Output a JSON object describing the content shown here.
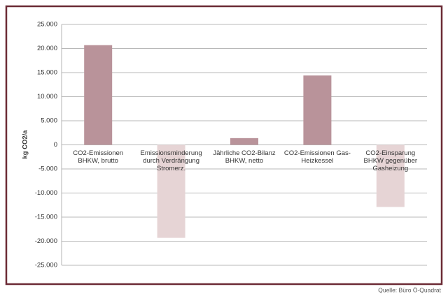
{
  "chart_data": {
    "type": "bar",
    "y_label": "kg CO2/a",
    "source": "Quelle: Büro Ö-Quadrat",
    "categories": [
      "CO2-Emissionen BHKW, brutto",
      "Emissionsminderung durch Verdrängung Stromerz.",
      "Jährliche CO2-Bilanz BHKW, netto",
      "CO2-Emissionen Gas-Heizkessel",
      "CO2-Einsparung BHKW gegenüber Gasheizung"
    ],
    "values": [
      20700,
      -19300,
      1400,
      14400,
      -12900
    ],
    "colors": [
      "#b9939a",
      "#e6d4d5",
      "#b9939a",
      "#b9939a",
      "#e6d4d5"
    ],
    "ylim": [
      -25000,
      25000
    ],
    "yticks": [
      {
        "value": -25000,
        "label": "-25.000"
      },
      {
        "value": -20000,
        "label": "-20.000"
      },
      {
        "value": -15000,
        "label": "-15.000"
      },
      {
        "value": -10000,
        "label": "-10.000"
      },
      {
        "value": -5000,
        "label": "-5.000"
      },
      0,
      {
        "value": 5000,
        "label": "5.000"
      },
      {
        "value": 10000,
        "label": "10.000"
      },
      {
        "value": 15000,
        "label": "15.000"
      },
      {
        "value": 20000,
        "label": "20.000"
      },
      {
        "value": 25000,
        "label": "25.000"
      }
    ],
    "grid": true
  }
}
